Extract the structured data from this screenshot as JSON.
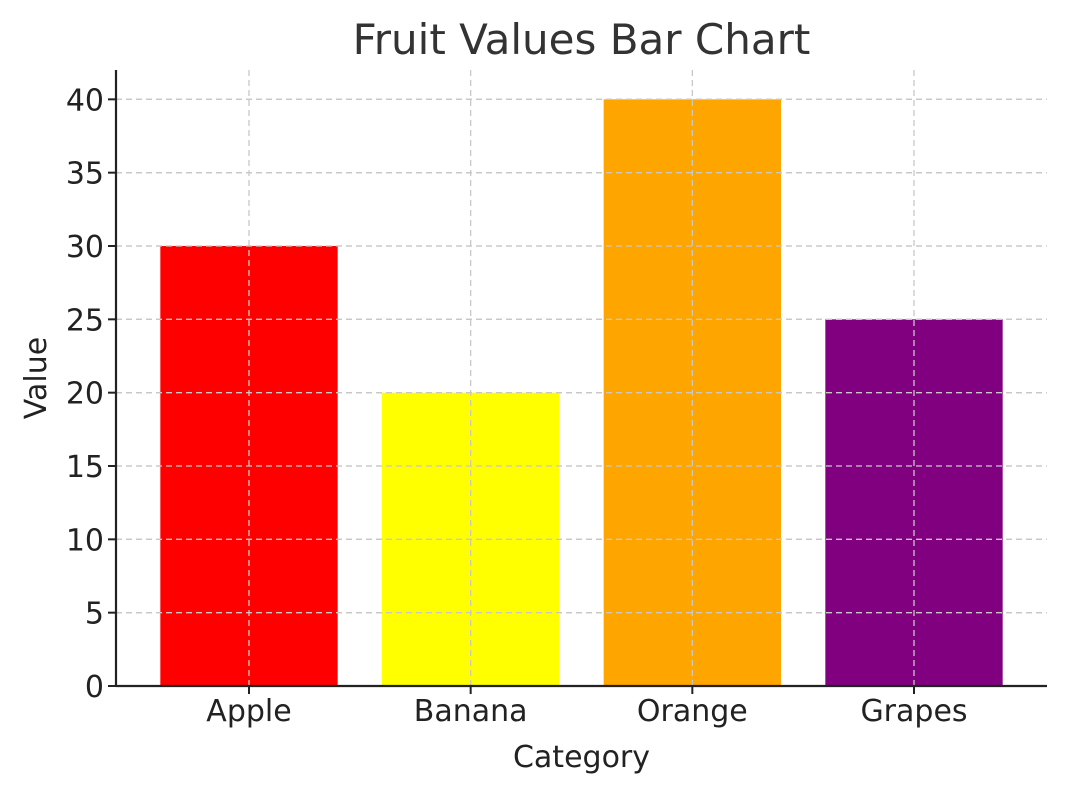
{
  "chart_data": {
    "type": "bar",
    "title": "Fruit Values Bar Chart",
    "xlabel": "Category",
    "ylabel": "Value",
    "categories": [
      "Apple",
      "Banana",
      "Orange",
      "Grapes"
    ],
    "values": [
      30,
      20,
      40,
      25
    ],
    "colors": [
      "#ff0000",
      "#ffff00",
      "#ffa500",
      "#800080"
    ],
    "ylim": [
      0,
      42
    ],
    "yticks": [
      0,
      5,
      10,
      15,
      20,
      25,
      30,
      35,
      40
    ],
    "grid": true
  }
}
